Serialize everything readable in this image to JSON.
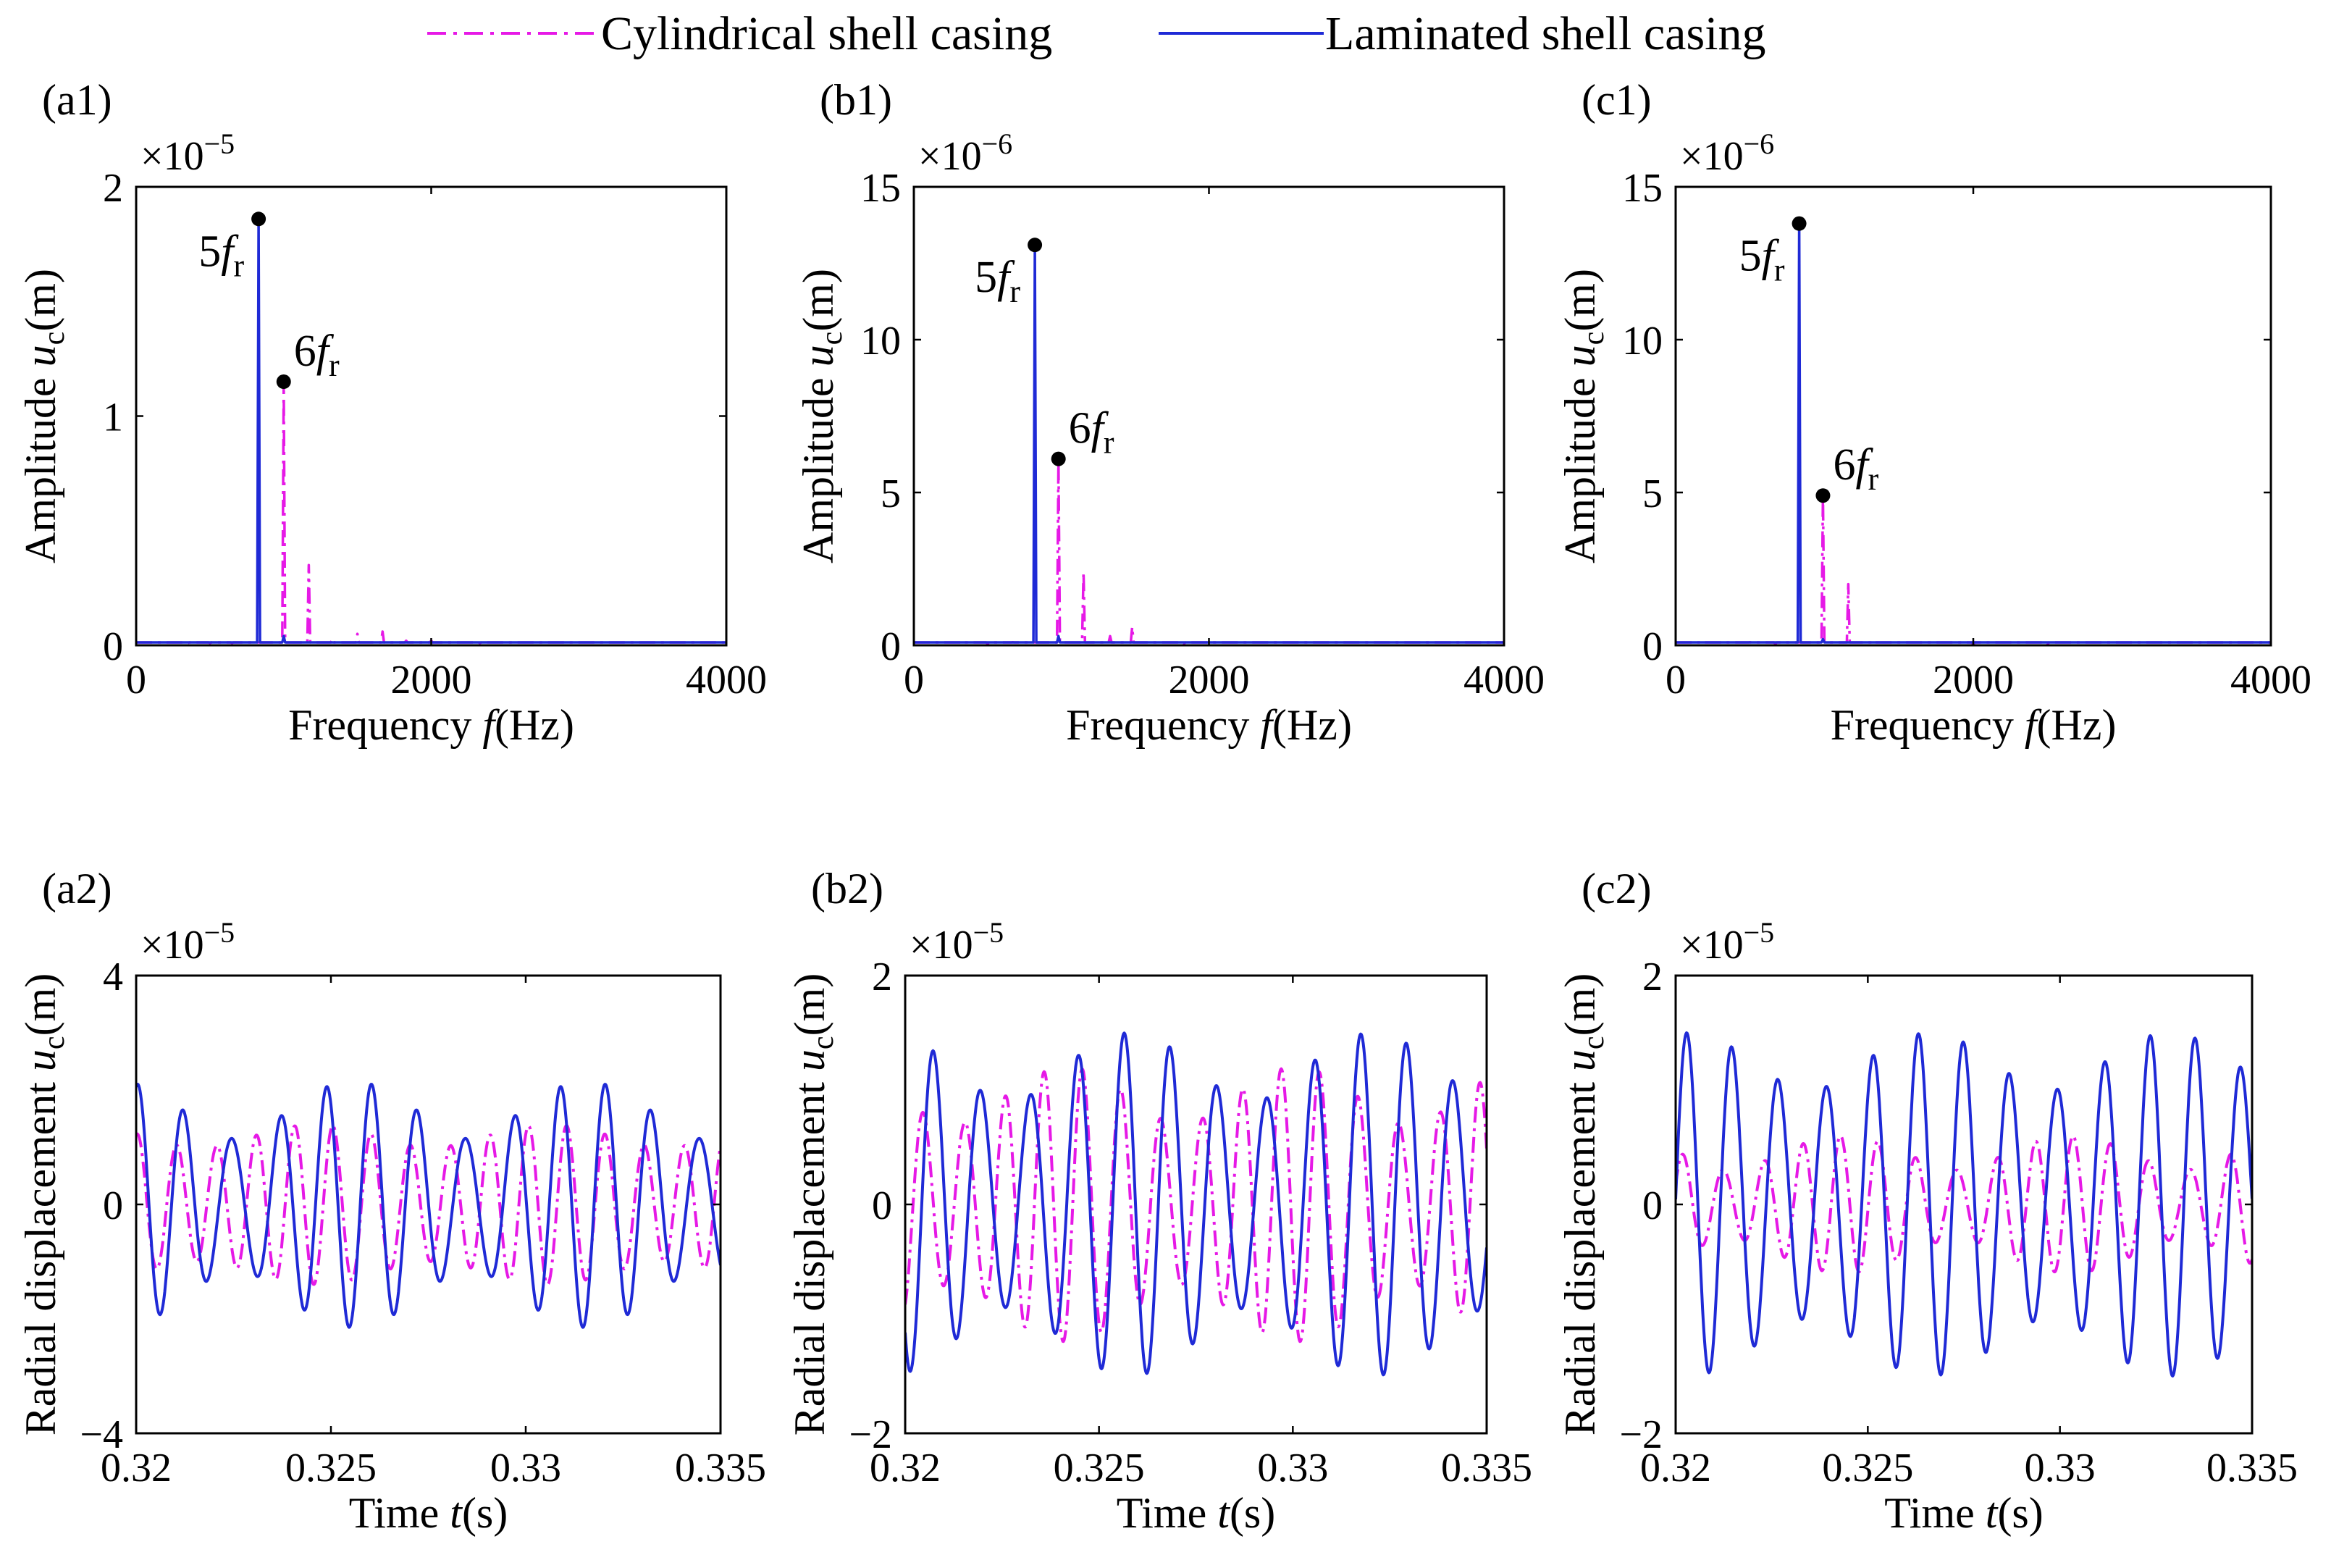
{
  "colors": {
    "cylindrical": "#e619e6",
    "laminated": "#1f2ad6"
  },
  "legend": {
    "items": [
      {
        "label": "Cylindrical shell casing",
        "style": "dash-dot",
        "color": "#e619e6"
      },
      {
        "label": "Laminated shell casing",
        "style": "solid",
        "color": "#1f2ad6"
      }
    ]
  },
  "chart_data": [
    {
      "id": "a1",
      "panel_label": "(a1)",
      "type": "line",
      "xlabel_prefix": "Frequency ",
      "xlabel_var": "f",
      "xlabel_unit": "(Hz)",
      "ylabel_prefix": "Amplitude ",
      "ylabel_var": "u",
      "ylabel_sub": "c",
      "ylabel_unit": "(m)",
      "multiplier_base": "×10",
      "multiplier_exp": "−5",
      "xlim": [
        0,
        4000
      ],
      "ylim": [
        0,
        2
      ],
      "xticks": [
        0,
        2000,
        4000
      ],
      "xtick_labels": [
        "0",
        "2000",
        "4000"
      ],
      "yticks": [
        0,
        1,
        2
      ],
      "ytick_labels": [
        "0",
        "1",
        "2"
      ],
      "series": [
        {
          "name": "Cylindrical shell casing",
          "color": "#e619e6",
          "style": "dash-dot",
          "spikes": [
            [
              200,
              0.01
            ],
            [
              350,
              0.01
            ],
            [
              500,
              0.01
            ],
            [
              650,
              0.01
            ],
            [
              1000,
              1.15
            ],
            [
              1170,
              0.35
            ],
            [
              1330,
              0.03
            ],
            [
              1500,
              0.05
            ],
            [
              1670,
              0.06
            ],
            [
              1830,
              0.02
            ],
            [
              2000,
              0.02
            ],
            [
              2330,
              0.01
            ]
          ]
        },
        {
          "name": "Laminated shell casing",
          "color": "#1f2ad6",
          "style": "solid",
          "spikes": [
            [
              830,
              1.86
            ],
            [
              1000,
              0.04
            ]
          ]
        }
      ],
      "annotations": [
        {
          "coef": "5",
          "var": "f",
          "sub": "r",
          "x": 830,
          "y": 1.86
        },
        {
          "coef": "6",
          "var": "f",
          "sub": "r",
          "x": 1000,
          "y": 1.15
        }
      ]
    },
    {
      "id": "b1",
      "panel_label": "(b1)",
      "type": "line",
      "xlabel_prefix": "Frequency ",
      "xlabel_var": "f",
      "xlabel_unit": "(Hz)",
      "ylabel_prefix": "Amplitude ",
      "ylabel_var": "u",
      "ylabel_sub": "c",
      "ylabel_unit": "(m)",
      "multiplier_base": "×10",
      "multiplier_exp": "−6",
      "xlim": [
        0,
        4000
      ],
      "ylim": [
        0,
        15
      ],
      "xticks": [
        0,
        2000,
        4000
      ],
      "xtick_labels": [
        "0",
        "2000",
        "4000"
      ],
      "yticks": [
        0,
        5,
        10,
        15
      ],
      "ytick_labels": [
        "0",
        "5",
        "10",
        "15"
      ],
      "series": [
        {
          "name": "Cylindrical shell casing",
          "color": "#e619e6",
          "style": "dash-dot",
          "spikes": [
            [
              330,
              0.05
            ],
            [
              500,
              0.05
            ],
            [
              670,
              0.1
            ],
            [
              980,
              6.1
            ],
            [
              1150,
              2.4
            ],
            [
              1330,
              0.3
            ],
            [
              1480,
              0.6
            ],
            [
              1650,
              0.1
            ],
            [
              1830,
              0.05
            ]
          ]
        },
        {
          "name": "Laminated shell casing",
          "color": "#1f2ad6",
          "style": "solid",
          "spikes": [
            [
              820,
              13.1
            ],
            [
              980,
              0.3
            ]
          ]
        }
      ],
      "annotations": [
        {
          "coef": "5",
          "var": "f",
          "sub": "r",
          "x": 820,
          "y": 13.1
        },
        {
          "coef": "6",
          "var": "f",
          "sub": "r",
          "x": 980,
          "y": 6.1
        }
      ]
    },
    {
      "id": "c1",
      "panel_label": "(c1)",
      "type": "line",
      "xlabel_prefix": "Frequency ",
      "xlabel_var": "f",
      "xlabel_unit": "(Hz)",
      "ylabel_prefix": "Amplitude ",
      "ylabel_var": "u",
      "ylabel_sub": "c",
      "ylabel_unit": "(m)",
      "multiplier_base": "×10",
      "multiplier_exp": "−6",
      "xlim": [
        0,
        4000
      ],
      "ylim": [
        0,
        15
      ],
      "xticks": [
        0,
        2000,
        4000
      ],
      "xtick_labels": [
        "0",
        "2000",
        "4000"
      ],
      "yticks": [
        0,
        5,
        10,
        15
      ],
      "ytick_labels": [
        "0",
        "5",
        "10",
        "15"
      ],
      "series": [
        {
          "name": "Cylindrical shell casing",
          "color": "#e619e6",
          "style": "dash-dot",
          "spikes": [
            [
              170,
              0.05
            ],
            [
              330,
              0.08
            ],
            [
              500,
              0.1
            ],
            [
              670,
              0.05
            ],
            [
              990,
              4.9
            ],
            [
              1160,
              2.0
            ],
            [
              1330,
              0.15
            ],
            [
              2000,
              0.03
            ],
            [
              2500,
              0.05
            ]
          ]
        },
        {
          "name": "Laminated shell casing",
          "color": "#1f2ad6",
          "style": "solid",
          "spikes": [
            [
              830,
              13.8
            ],
            [
              990,
              0.2
            ]
          ]
        }
      ],
      "annotations": [
        {
          "coef": "5",
          "var": "f",
          "sub": "r",
          "x": 830,
          "y": 13.8
        },
        {
          "coef": "6",
          "var": "f",
          "sub": "r",
          "x": 990,
          "y": 4.9
        }
      ]
    },
    {
      "id": "a2",
      "panel_label": "(a2)",
      "type": "line",
      "xlabel_prefix": "Time ",
      "xlabel_var": "t",
      "xlabel_unit": "(s)",
      "ylabel_prefix": "Radial displacement ",
      "ylabel_var": "u",
      "ylabel_sub": "c",
      "ylabel_unit": "(m)",
      "multiplier_base": "×10",
      "multiplier_exp": "−5",
      "xlim": [
        0.32,
        0.335
      ],
      "ylim": [
        -4,
        4
      ],
      "xticks": [
        0.32,
        0.325,
        0.33,
        0.335
      ],
      "xtick_labels": [
        "0.32",
        "0.325",
        "0.33",
        "0.335"
      ],
      "yticks": [
        -4,
        0,
        4
      ],
      "ytick_labels": [
        "−4",
        "0",
        "4"
      ],
      "series": [
        {
          "name": "Cylindrical shell casing",
          "color": "#e619e6",
          "style": "dash-dot",
          "signal": {
            "terms": [
              [
                1.2,
                1000,
                1.2
              ],
              [
                0.2,
                1166.7,
                0.5
              ]
            ],
            "offset": 0
          }
        },
        {
          "name": "Laminated shell casing",
          "color": "#1f2ad6",
          "style": "solid",
          "signal": {
            "terms": [
              [
                1.65,
                833.3,
                3.4
              ],
              [
                0.5,
                1000,
                1.7
              ]
            ],
            "offset": 0
          }
        }
      ]
    },
    {
      "id": "b2",
      "panel_label": "(b2)",
      "type": "line",
      "xlabel_prefix": "Time ",
      "xlabel_var": "t",
      "xlabel_unit": "(s)",
      "ylabel_prefix": "Radial displacement ",
      "ylabel_var": "u",
      "ylabel_sub": "c",
      "ylabel_unit": "(m)",
      "multiplier_base": "×10",
      "multiplier_exp": "−5",
      "xlim": [
        0.32,
        0.335
      ],
      "ylim": [
        -2,
        2
      ],
      "xticks": [
        0.32,
        0.325,
        0.33,
        0.335
      ],
      "xtick_labels": [
        "0.32",
        "0.325",
        "0.33",
        "0.335"
      ],
      "yticks": [
        -2,
        0,
        2
      ],
      "ytick_labels": [
        "−2",
        "0",
        "2"
      ],
      "series": [
        {
          "name": "Cylindrical shell casing",
          "color": "#e619e6",
          "style": "dash-dot",
          "signal": {
            "terms": [
              [
                0.95,
                980,
                1.0
              ],
              [
                0.25,
                1150,
                0.3
              ]
            ],
            "offset": 0
          }
        },
        {
          "name": "Laminated shell casing",
          "color": "#1f2ad6",
          "style": "solid",
          "signal": {
            "terms": [
              [
                1.2,
                820,
                1.4
              ],
              [
                0.3,
                980,
                0.6
              ]
            ],
            "offset": 0
          }
        }
      ]
    },
    {
      "id": "c2",
      "panel_label": "(c2)",
      "type": "line",
      "xlabel_prefix": "Time ",
      "xlabel_var": "t",
      "xlabel_unit": "(s)",
      "ylabel_prefix": "Radial displacement ",
      "ylabel_var": "u",
      "ylabel_sub": "c",
      "ylabel_unit": "(m)",
      "multiplier_base": "×10",
      "multiplier_exp": "−5",
      "xlim": [
        0.32,
        0.335
      ],
      "ylim": [
        -2,
        2
      ],
      "xticks": [
        0.32,
        0.325,
        0.33,
        0.335
      ],
      "xtick_labels": [
        "0.32",
        "0.325",
        "0.33",
        "0.335"
      ],
      "yticks": [
        -2,
        0,
        2
      ],
      "ytick_labels": [
        "−2",
        "0",
        "2"
      ],
      "series": [
        {
          "name": "Cylindrical shell casing",
          "color": "#e619e6",
          "style": "dash-dot",
          "signal": {
            "terms": [
              [
                0.45,
                990,
                1.3
              ],
              [
                0.15,
                1160,
                0.4
              ]
            ],
            "offset": 0
          }
        },
        {
          "name": "Laminated shell casing",
          "color": "#1f2ad6",
          "style": "solid",
          "signal": {
            "terms": [
              [
                1.25,
                830,
                2.6
              ],
              [
                0.25,
                990,
                1.0
              ]
            ],
            "offset": 0
          }
        }
      ]
    }
  ]
}
